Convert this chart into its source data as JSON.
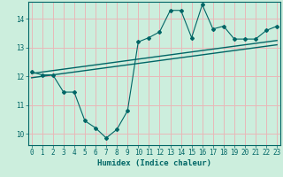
{
  "xlabel": "Humidex (Indice chaleur)",
  "background_color": "#cceedd",
  "line_color": "#006666",
  "grid_color": "#e8b8b8",
  "x_data": [
    0,
    1,
    2,
    3,
    4,
    5,
    6,
    7,
    8,
    9,
    10,
    11,
    12,
    13,
    14,
    15,
    16,
    17,
    18,
    19,
    20,
    21,
    22,
    23
  ],
  "y_data": [
    12.15,
    12.05,
    12.05,
    11.45,
    11.45,
    10.45,
    10.2,
    9.85,
    10.15,
    10.8,
    13.2,
    13.35,
    13.55,
    14.3,
    14.3,
    13.35,
    14.5,
    13.65,
    13.75,
    13.3,
    13.3,
    13.3,
    13.6,
    13.75
  ],
  "trend1_x": [
    0,
    23
  ],
  "trend1_y": [
    11.95,
    13.1
  ],
  "trend2_x": [
    0,
    23
  ],
  "trend2_y": [
    12.1,
    13.25
  ],
  "xlim": [
    -0.3,
    23.3
  ],
  "ylim": [
    9.6,
    14.6
  ],
  "yticks": [
    10,
    11,
    12,
    13,
    14
  ],
  "xticks": [
    0,
    1,
    2,
    3,
    4,
    5,
    6,
    7,
    8,
    9,
    10,
    11,
    12,
    13,
    14,
    15,
    16,
    17,
    18,
    19,
    20,
    21,
    22,
    23
  ],
  "tick_fontsize": 5.5,
  "label_fontsize": 6.5
}
